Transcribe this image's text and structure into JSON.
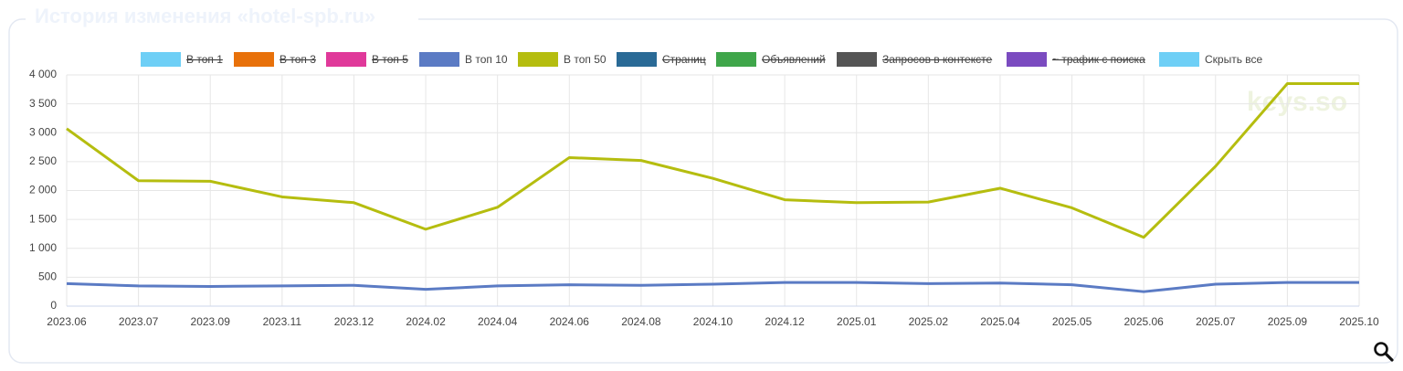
{
  "chart_data": {
    "type": "line",
    "title": "История изменения «hotel-spb.ru»",
    "watermark": "keys.so",
    "categories": [
      "2023.06",
      "2023.07",
      "2023.09",
      "2023.11",
      "2023.12",
      "2024.02",
      "2024.04",
      "2024.06",
      "2024.08",
      "2024.10",
      "2024.12",
      "2025.01",
      "2025.02",
      "2025.04",
      "2025.05",
      "2025.06",
      "2025.07",
      "2025.09",
      "2025.10"
    ],
    "series": [
      {
        "name": "В топ 1",
        "color": "#6ecff6",
        "hidden": true,
        "values": [
          null,
          null,
          null,
          null,
          null,
          null,
          null,
          null,
          null,
          null,
          null,
          null,
          null,
          null,
          null,
          null,
          null,
          null,
          null
        ]
      },
      {
        "name": "В топ 3",
        "color": "#e8710a",
        "hidden": true,
        "values": [
          null,
          null,
          null,
          null,
          null,
          null,
          null,
          null,
          null,
          null,
          null,
          null,
          null,
          null,
          null,
          null,
          null,
          null,
          null
        ]
      },
      {
        "name": "В топ 5",
        "color": "#e0399a",
        "hidden": true,
        "values": [
          null,
          null,
          null,
          null,
          null,
          null,
          null,
          null,
          null,
          null,
          null,
          null,
          null,
          null,
          null,
          null,
          null,
          null,
          null
        ]
      },
      {
        "name": "В топ 10",
        "color": "#5b7bc4",
        "hidden": false,
        "values": [
          390,
          350,
          340,
          350,
          360,
          290,
          350,
          370,
          360,
          380,
          410,
          410,
          390,
          400,
          370,
          250,
          380,
          410,
          410
        ]
      },
      {
        "name": "В топ 50",
        "color": "#b5bd0f",
        "hidden": false,
        "values": [
          3070,
          2170,
          2160,
          1890,
          1790,
          1330,
          1710,
          2570,
          2520,
          2210,
          1840,
          1790,
          1800,
          2040,
          1700,
          1190,
          2420,
          3850,
          3850
        ]
      },
      {
        "name": "Страниц",
        "color": "#2a6a96",
        "hidden": true,
        "values": [
          null,
          null,
          null,
          null,
          null,
          null,
          null,
          null,
          null,
          null,
          null,
          null,
          null,
          null,
          null,
          null,
          null,
          null,
          null
        ]
      },
      {
        "name": "Объявлений",
        "color": "#3fa64a",
        "hidden": true,
        "values": [
          null,
          null,
          null,
          null,
          null,
          null,
          null,
          null,
          null,
          null,
          null,
          null,
          null,
          null,
          null,
          null,
          null,
          null,
          null
        ]
      },
      {
        "name": "Запросов в контексте",
        "color": "#555555",
        "hidden": true,
        "values": [
          null,
          null,
          null,
          null,
          null,
          null,
          null,
          null,
          null,
          null,
          null,
          null,
          null,
          null,
          null,
          null,
          null,
          null,
          null
        ]
      },
      {
        "name": "~ трафик с поиска",
        "color": "#7b4bc0",
        "hidden": true,
        "values": [
          null,
          null,
          null,
          null,
          null,
          null,
          null,
          null,
          null,
          null,
          null,
          null,
          null,
          null,
          null,
          null,
          null,
          null,
          null
        ]
      }
    ],
    "legend_toggle": {
      "label": "Скрыть все",
      "color": "#6ecff6"
    },
    "ylim": [
      0,
      4000
    ],
    "yticks": [
      0,
      500,
      {
        "value": 1000,
        "label": "1 000"
      },
      {
        "value": 1500,
        "label": "1 500"
      },
      {
        "value": 2000,
        "label": "2 000"
      },
      {
        "value": 2500,
        "label": "2 500"
      },
      {
        "value": 3000,
        "label": "3 000"
      },
      {
        "value": 3500,
        "label": "3 500"
      },
      {
        "value": 4000,
        "label": "4 000"
      }
    ],
    "grid": true
  }
}
